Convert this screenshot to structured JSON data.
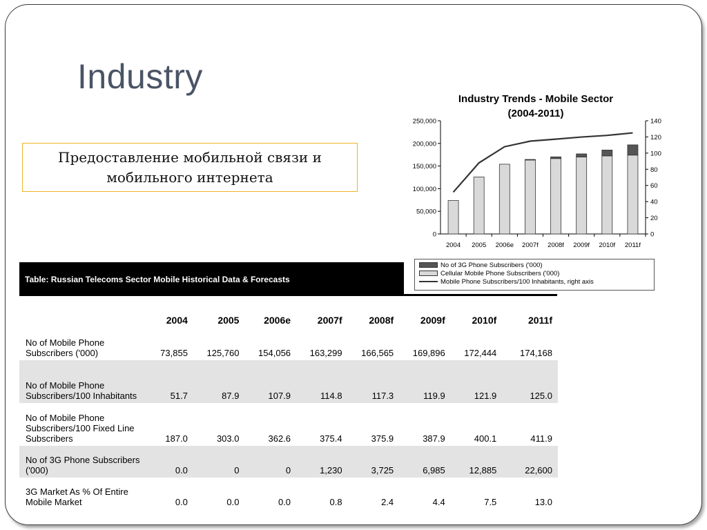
{
  "slide": {
    "title": "Industry",
    "subtitle": "Предоставление мобильной связи и мобильного интернета"
  },
  "chart_data": {
    "type": "bar",
    "title_line1": "Industry Trends - Mobile Sector",
    "title_line2": "(2004-2011)",
    "categories": [
      "2004",
      "2005",
      "2006e",
      "2007f",
      "2008f",
      "2009f",
      "2010f",
      "2011f"
    ],
    "series": [
      {
        "name": "Cellular Mobile Phone Subscribers ('000)",
        "type": "bar",
        "axis": "left",
        "color": "#d9d9d9",
        "values": [
          73855,
          125760,
          154056,
          163299,
          166565,
          169896,
          172444,
          174168
        ]
      },
      {
        "name": "No of 3G Phone Subscribers ('000)",
        "type": "bar-stacked",
        "axis": "left",
        "color": "#555555",
        "values": [
          0,
          0,
          0,
          1230,
          3725,
          6985,
          12885,
          22600
        ]
      },
      {
        "name": "Mobile Phone Subscribers/100 Inhabitants, right axis",
        "type": "line",
        "axis": "right",
        "color": "#333333",
        "values": [
          51.7,
          87.9,
          107.9,
          114.8,
          117.3,
          119.9,
          121.9,
          125.0
        ]
      }
    ],
    "y_left": {
      "range": [
        0,
        250000
      ],
      "ticks": [
        "0",
        "50,000",
        "100,000",
        "150,000",
        "200,000",
        "250,000"
      ]
    },
    "y_right": {
      "range": [
        0,
        140
      ],
      "ticks": [
        "0",
        "20",
        "40",
        "60",
        "80",
        "100",
        "120",
        "140"
      ]
    },
    "grid": false,
    "legend_position": "bottom"
  },
  "table": {
    "title": "Table: Russian Telecoms Sector Mobile Historical Data & Forecasts",
    "columns": [
      "2004",
      "2005",
      "2006e",
      "2007f",
      "2008f",
      "2009f",
      "2010f",
      "2011f"
    ],
    "rows": [
      {
        "label": "No of Mobile Phone Subscribers ('000)",
        "values": [
          "73,855",
          "125,760",
          "154,056",
          "163,299",
          "166,565",
          "169,896",
          "172,444",
          "174,168"
        ]
      },
      {
        "label": "No of Mobile Phone Subscribers/100 Inhabitants",
        "values": [
          "51.7",
          "87.9",
          "107.9",
          "114.8",
          "117.3",
          "119.9",
          "121.9",
          "125.0"
        ]
      },
      {
        "label": "No of Mobile Phone Subscribers/100 Fixed Line Subscribers",
        "values": [
          "187.0",
          "303.0",
          "362.6",
          "375.4",
          "375.9",
          "387.9",
          "400.1",
          "411.9"
        ]
      },
      {
        "label": "No of 3G Phone Subscribers ('000)",
        "values": [
          "0.0",
          "0",
          "0",
          "1,230",
          "3,725",
          "6,985",
          "12,885",
          "22,600"
        ]
      },
      {
        "label": "3G Market As % Of Entire Mobile Market",
        "values": [
          "0.0",
          "0.0",
          "0.0",
          "0.8",
          "2.4",
          "4.4",
          "7.5",
          "13.0"
        ]
      }
    ]
  }
}
